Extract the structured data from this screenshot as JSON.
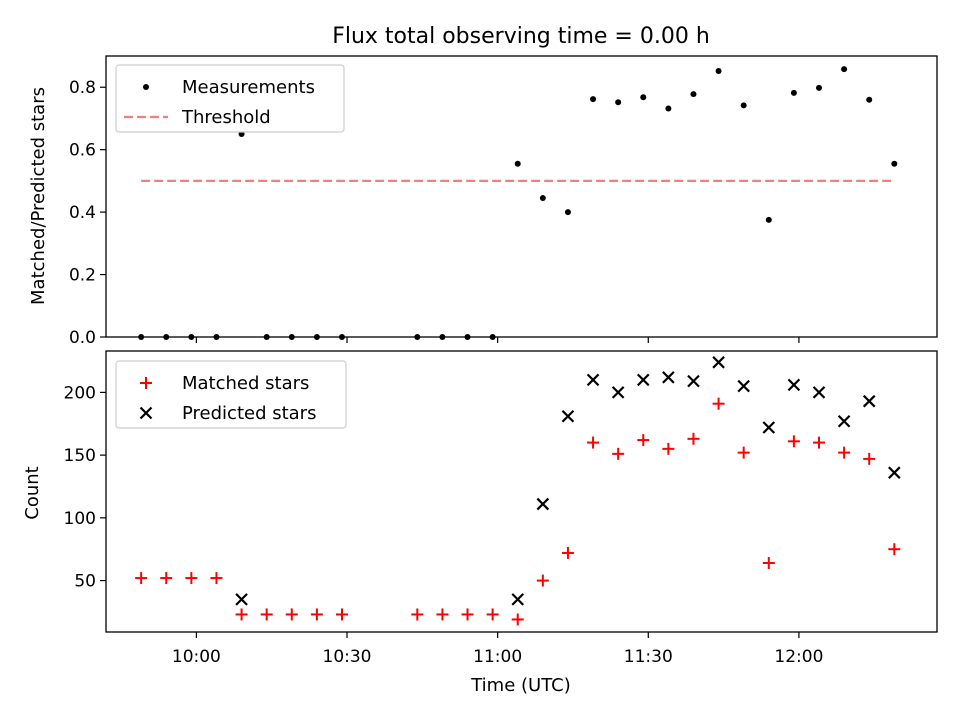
{
  "chart_data": [
    {
      "type": "scatter",
      "title": "Flux total observing time = 0.00 h",
      "xlabel": "",
      "ylabel": "Matched/Predicted stars",
      "ylim": [
        0,
        0.9
      ],
      "yticks": [
        0.0,
        0.2,
        0.4,
        0.6,
        0.8
      ],
      "ytick_labels": [
        "0.0",
        "0.2",
        "0.4",
        "0.6",
        "0.8"
      ],
      "legend_position": "top-left",
      "series": [
        {
          "name": "Measurements",
          "marker": "dot",
          "color": "#000000",
          "x": [
            0,
            5,
            10,
            15,
            20,
            25,
            30,
            35,
            40,
            55,
            60,
            65,
            70,
            75,
            80,
            85,
            90,
            95,
            100,
            105,
            110,
            115,
            120,
            125,
            130,
            135,
            140,
            145,
            150
          ],
          "y": [
            0,
            0,
            0,
            0,
            0.65,
            0,
            0,
            0,
            0,
            0,
            0,
            0,
            0,
            0.555,
            0.445,
            0.4,
            0.762,
            0.752,
            0.768,
            0.732,
            0.778,
            0.852,
            0.742,
            0.375,
            0.782,
            0.798,
            0.858,
            0.76,
            0.555
          ]
        },
        {
          "name": "Threshold",
          "style": "dashed",
          "color": "#f08080",
          "x": [
            0,
            150
          ],
          "y": [
            0.5,
            0.5
          ]
        }
      ]
    },
    {
      "type": "scatter",
      "title": "",
      "xlabel": "Time (UTC)",
      "ylabel": "Count",
      "ylim": [
        9,
        233
      ],
      "yticks": [
        50,
        100,
        150,
        200
      ],
      "ytick_labels": [
        "50",
        "100",
        "150",
        "200"
      ],
      "xlim_minutes_after_0931": [
        -7,
        158.5
      ],
      "xticks": [
        11,
        41,
        71,
        101,
        131
      ],
      "xtick_labels": [
        "10:00",
        "10:30",
        "11:00",
        "11:30",
        "12:00"
      ],
      "legend_position": "top-left",
      "series": [
        {
          "name": "Matched stars",
          "marker": "plus",
          "color": "#ff0000",
          "x": [
            0,
            5,
            10,
            15,
            20,
            25,
            30,
            35,
            40,
            55,
            60,
            65,
            70,
            75,
            80,
            85,
            90,
            95,
            100,
            105,
            110,
            115,
            120,
            125,
            130,
            135,
            140,
            145,
            150
          ],
          "y": [
            52,
            52,
            52,
            52,
            23,
            23,
            23,
            23,
            23,
            23,
            23,
            23,
            23,
            19,
            50,
            72,
            160,
            151,
            162,
            155,
            163,
            191,
            152,
            64,
            161,
            160,
            152,
            147,
            75
          ]
        },
        {
          "name": "Predicted stars",
          "marker": "x",
          "color": "#000000",
          "x": [
            20,
            75,
            80,
            85,
            90,
            95,
            100,
            105,
            110,
            115,
            120,
            125,
            130,
            135,
            140,
            145,
            150
          ],
          "y": [
            35,
            35,
            111,
            181,
            210,
            200,
            210,
            212,
            209,
            224,
            205,
            172,
            206,
            200,
            177,
            193,
            136
          ]
        }
      ]
    }
  ]
}
